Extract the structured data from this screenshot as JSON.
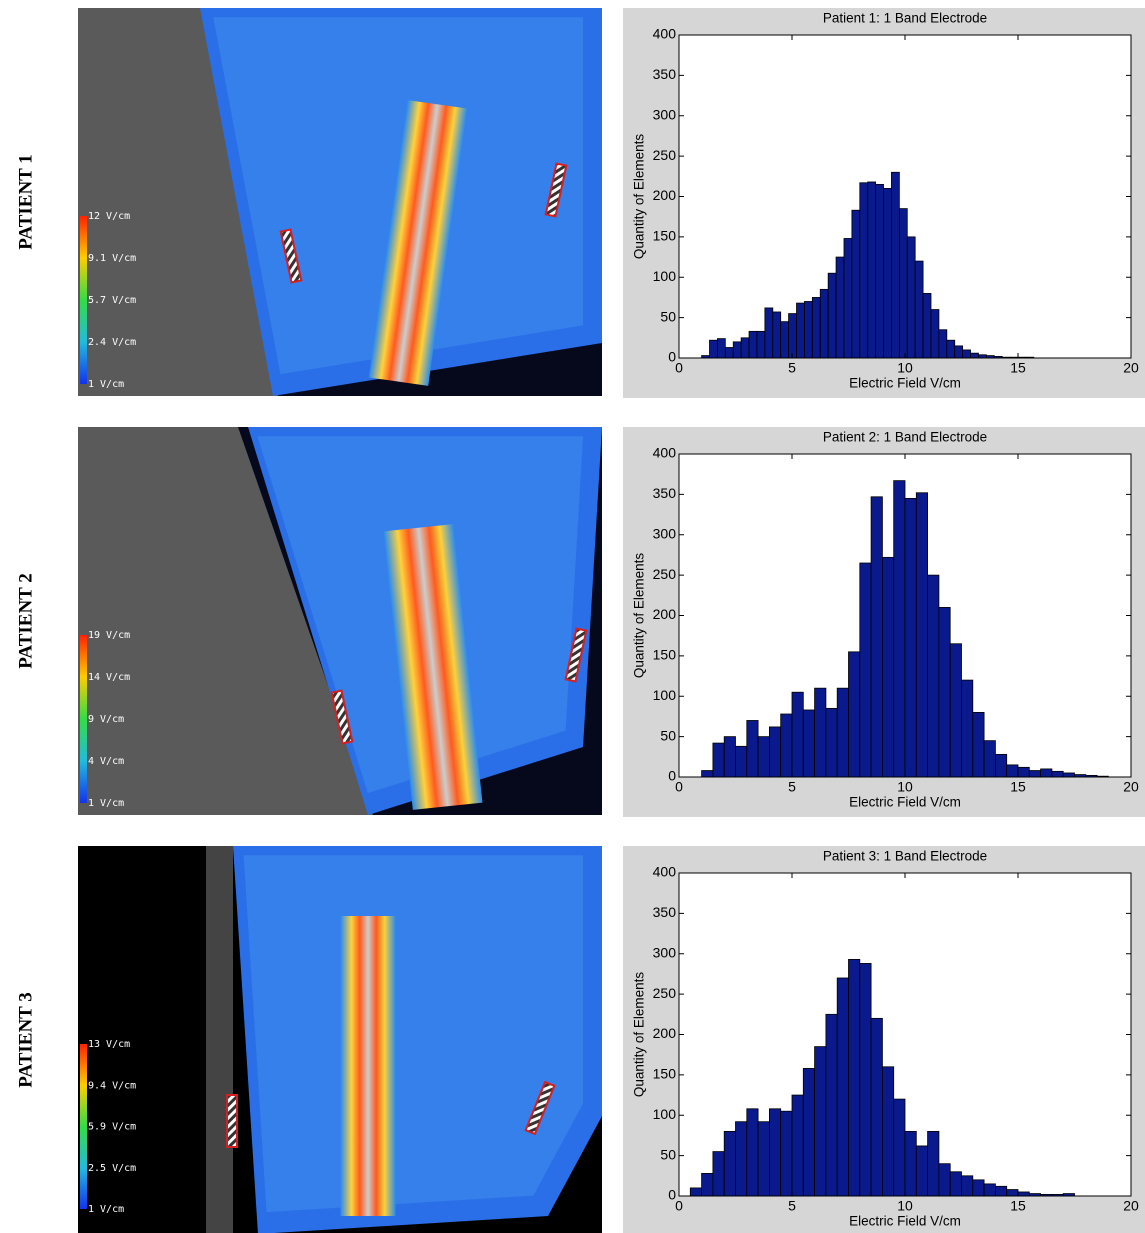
{
  "row_labels": [
    "PATIENT 1",
    "PATIENT 2",
    "PATIENT 3"
  ],
  "colorbars": [
    [
      "12 V/cm",
      "9.1 V/cm",
      "5.7 V/cm",
      "2.4 V/cm",
      "1 V/cm"
    ],
    [
      "19 V/cm",
      "14 V/cm",
      "9 V/cm",
      "4 V/cm",
      "1 V/cm"
    ],
    [
      "13 V/cm",
      "9.4 V/cm",
      "5.9 V/cm",
      "2.5 V/cm",
      "1 V/cm"
    ]
  ],
  "chart_data": [
    {
      "type": "histogram",
      "title": "Patient 1: 1 Band Electrode",
      "xlabel": "Electric Field V/cm",
      "ylabel": "Quantity of Elements",
      "bins": [
        1,
        1.35,
        1.7,
        2.05,
        2.4,
        2.75,
        3.1,
        3.45,
        3.8,
        4.15,
        4.5,
        4.85,
        5.2,
        5.55,
        5.9,
        6.25,
        6.6,
        6.95,
        7.3,
        7.65,
        8,
        8.35,
        8.7,
        9.05,
        9.4,
        9.75,
        10.1,
        10.45,
        10.8,
        11.15,
        11.5,
        11.85,
        12.2,
        12.55,
        12.9,
        13.25,
        13.6,
        13.95,
        14.3,
        14.65,
        15,
        15.35,
        15.7
      ],
      "values": [
        3,
        22,
        24,
        13,
        20,
        25,
        33,
        33,
        62,
        57,
        45,
        55,
        68,
        70,
        75,
        85,
        105,
        125,
        148,
        183,
        217,
        218,
        215,
        210,
        230,
        185,
        150,
        120,
        80,
        60,
        35,
        22,
        15,
        10,
        6,
        4,
        3,
        2,
        1,
        1,
        1,
        1
      ],
      "color": "#0a1a8c",
      "xlim": [
        0,
        20
      ],
      "ylim": [
        0,
        400
      ],
      "xticks": [
        0,
        5,
        10,
        15,
        20
      ],
      "yticks": [
        0,
        50,
        100,
        150,
        200,
        250,
        300,
        350,
        400
      ]
    },
    {
      "type": "histogram",
      "title": "Patient 2: 1 Band Electrode",
      "xlabel": "Electric Field V/cm",
      "ylabel": "Quantity of Elements",
      "bins": [
        1,
        1.5,
        2,
        2.5,
        3,
        3.5,
        4,
        4.5,
        5,
        5.5,
        6,
        6.5,
        7,
        7.5,
        8,
        8.5,
        9,
        9.5,
        10,
        10.5,
        11,
        11.5,
        12,
        12.5,
        13,
        13.5,
        14,
        14.5,
        15,
        15.5,
        16,
        16.5,
        17,
        17.5,
        18,
        18.5,
        19
      ],
      "values": [
        8,
        42,
        50,
        38,
        70,
        50,
        62,
        78,
        105,
        83,
        110,
        85,
        110,
        155,
        265,
        347,
        272,
        367,
        345,
        352,
        250,
        210,
        165,
        120,
        80,
        45,
        28,
        15,
        12,
        8,
        10,
        7,
        5,
        3,
        2,
        1
      ],
      "color": "#0a1a8c",
      "xlim": [
        0,
        20
      ],
      "ylim": [
        0,
        400
      ],
      "xticks": [
        0,
        5,
        10,
        15,
        20
      ],
      "yticks": [
        0,
        50,
        100,
        150,
        200,
        250,
        300,
        350,
        400
      ]
    },
    {
      "type": "histogram",
      "title": "Patient 3: 1 Band Electrode",
      "xlabel": "Electric Field V/cm",
      "ylabel": "Quantity of Elements",
      "bins": [
        0.5,
        1,
        1.5,
        2,
        2.5,
        3,
        3.5,
        4,
        4.5,
        5,
        5.5,
        6,
        6.5,
        7,
        7.5,
        8,
        8.5,
        9,
        9.5,
        10,
        10.5,
        11,
        11.5,
        12,
        12.5,
        13,
        13.5,
        14,
        14.5,
        15,
        15.5,
        16,
        16.5,
        17,
        17.5
      ],
      "values": [
        10,
        28,
        55,
        80,
        92,
        108,
        92,
        108,
        105,
        125,
        158,
        185,
        225,
        270,
        293,
        288,
        220,
        160,
        120,
        80,
        62,
        80,
        40,
        30,
        25,
        20,
        15,
        12,
        8,
        5,
        3,
        2,
        2,
        3
      ],
      "color": "#0a1a8c",
      "xlim": [
        0,
        20
      ],
      "ylim": [
        0,
        400
      ],
      "xticks": [
        0,
        5,
        10,
        15,
        20
      ],
      "yticks": [
        0,
        50,
        100,
        150,
        200,
        250,
        300,
        350,
        400
      ]
    }
  ]
}
